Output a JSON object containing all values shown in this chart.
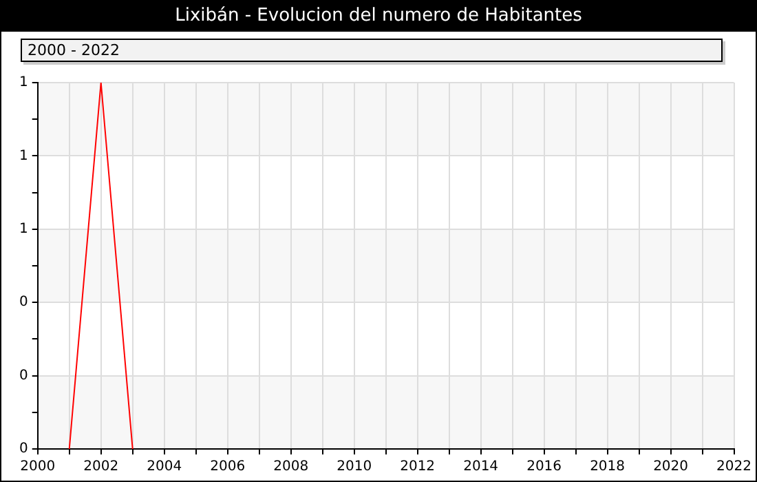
{
  "chart_data": {
    "type": "line",
    "title": "Lixibán - Evolucion del numero de Habitantes",
    "annotations": [
      "2000 - 2022"
    ],
    "x": [
      2001,
      2002,
      2003
    ],
    "series": [
      {
        "color": "#ff0000",
        "values": [
          0,
          1,
          0
        ]
      }
    ],
    "xlim": [
      2000,
      2022
    ],
    "xticks": [
      2000,
      {
        "value": 2001,
        "label": null
      },
      2002,
      {
        "value": 2003,
        "label": null
      },
      2004,
      {
        "value": 2005,
        "label": null
      },
      2006,
      {
        "value": 2007,
        "label": null
      },
      2008,
      {
        "value": 2009,
        "label": null
      },
      2010,
      {
        "value": 2011,
        "label": null
      },
      2012,
      {
        "value": 2013,
        "label": null
      },
      2014,
      {
        "value": 2015,
        "label": null
      },
      2016,
      {
        "value": 2017,
        "label": null
      },
      2018,
      {
        "value": 2019,
        "label": null
      },
      2020,
      {
        "value": 2021,
        "label": null
      },
      2022
    ],
    "ylim": [
      0,
      1
    ],
    "yticks": [
      0,
      {
        "value": 0.1,
        "label": null
      },
      {
        "value": 0.2,
        "label": "0"
      },
      {
        "value": 0.3,
        "label": null
      },
      {
        "value": 0.4,
        "label": "0"
      },
      {
        "value": 0.5,
        "label": null
      },
      {
        "value": 0.6,
        "label": "1"
      },
      {
        "value": 0.7,
        "label": null
      },
      {
        "value": 0.8,
        "label": "1"
      },
      {
        "value": 0.9,
        "label": null
      },
      {
        "value": 1,
        "label": "1"
      }
    ],
    "grid": true,
    "legend": false,
    "marker": "none",
    "line_style": "solid"
  }
}
